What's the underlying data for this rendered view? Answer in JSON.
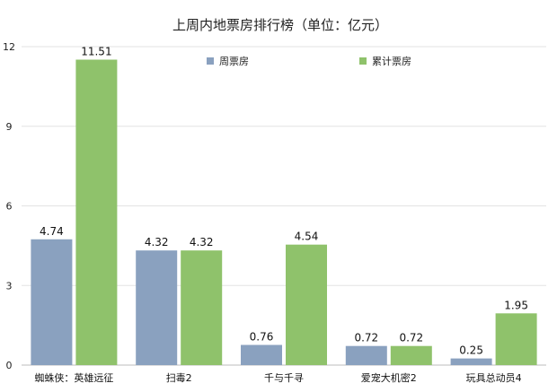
{
  "chart_data": {
    "type": "bar",
    "title": "上周内地票房排行榜（单位：亿元）",
    "xlabel": "",
    "ylabel": "",
    "categories": [
      "蜘蛛侠：英雄远征",
      "扫毒2",
      "千与千寻",
      "爱宠大机密2",
      "玩具总动员4"
    ],
    "series": [
      {
        "name": "周票房",
        "color": "#8aa1bf",
        "values": [
          4.74,
          4.32,
          0.76,
          0.72,
          0.25
        ]
      },
      {
        "name": "累计票房",
        "color": "#8fc26b",
        "values": [
          11.51,
          4.32,
          4.54,
          0.72,
          1.95
        ]
      }
    ],
    "ylim": [
      0,
      12
    ],
    "yticks": [
      "0",
      "3",
      "6",
      "9",
      "12"
    ],
    "grid": true,
    "legend_position": "top"
  }
}
